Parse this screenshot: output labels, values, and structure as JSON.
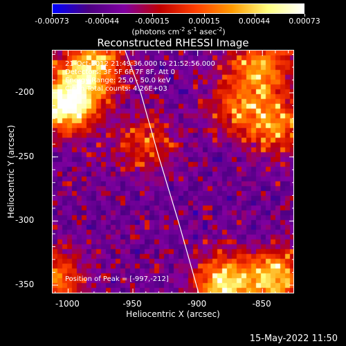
{
  "colorbar": {
    "tick_labels": [
      "-0.00073",
      "-0.00044",
      "-0.00015",
      "0.00015",
      "0.00044",
      "0.00073"
    ],
    "tick_values": [
      -0.00073,
      -0.00044,
      -0.00015,
      0.00015,
      0.00044,
      0.00073
    ],
    "range": [
      -0.00073,
      0.00073
    ],
    "units_prefix": "(photons cm",
    "units_exp1": "-2",
    "units_mid": " s",
    "units_exp2": "-1",
    "units_mid2": " asec",
    "units_exp3": "-2",
    "units_suffix": ")",
    "colormap": [
      "#0000ff",
      "#4b0082",
      "#8000a0",
      "#c00000",
      "#ff4000",
      "#ff9a00",
      "#ffff80",
      "#ffffff"
    ]
  },
  "chart_data": {
    "type": "heatmap",
    "title": "Reconstructed RHESSI Image",
    "xlabel": "Heliocentric X (arcsec)",
    "ylabel": "Heliocentric Y (arcsec)",
    "xlim": [
      -1012,
      -825
    ],
    "ylim": [
      -357,
      -167
    ],
    "x_ticks": [
      -1000,
      -950,
      -900,
      -850
    ],
    "x_tick_labels": [
      "-1000",
      "-950",
      "-900",
      "-850"
    ],
    "y_ticks": [
      -200,
      -250,
      -300,
      -350
    ],
    "y_tick_labels": [
      "-200",
      "-250",
      "-300",
      "-350"
    ],
    "peak_position": [
      -997,
      -212
    ],
    "bright_regions": [
      {
        "x": -1000,
        "y": -208,
        "level": 1.0
      },
      {
        "x": -980,
        "y": -180,
        "level": 0.7
      },
      {
        "x": -850,
        "y": -180,
        "level": 0.6
      },
      {
        "x": -840,
        "y": -225,
        "level": 0.55
      },
      {
        "x": -880,
        "y": -350,
        "level": 0.8
      },
      {
        "x": -840,
        "y": -345,
        "level": 0.7
      },
      {
        "x": -1010,
        "y": -345,
        "level": 0.55
      },
      {
        "x": -940,
        "y": -240,
        "level": 0.4
      },
      {
        "x": -870,
        "y": -210,
        "level": 0.4
      }
    ],
    "limb_curve": [
      [
        -956,
        -167
      ],
      [
        -944,
        -200
      ],
      [
        -930,
        -250
      ],
      [
        -915,
        -300
      ],
      [
        -899,
        -357
      ]
    ]
  },
  "annotations": {
    "time_range": "21-Oct-2012 21:49:36.000 to 21:52:56.000",
    "detectors": "Detectors: 3F 5F 6F 7F 8F, Att 0",
    "energy": "Energy Range: 25.0 - 50.0 keV",
    "method": "Clean    Total counts: 4.26E+03",
    "peak": "Position of Peak = [-997,-212]"
  },
  "footer": {
    "date": "15-May-2022 11:50"
  }
}
